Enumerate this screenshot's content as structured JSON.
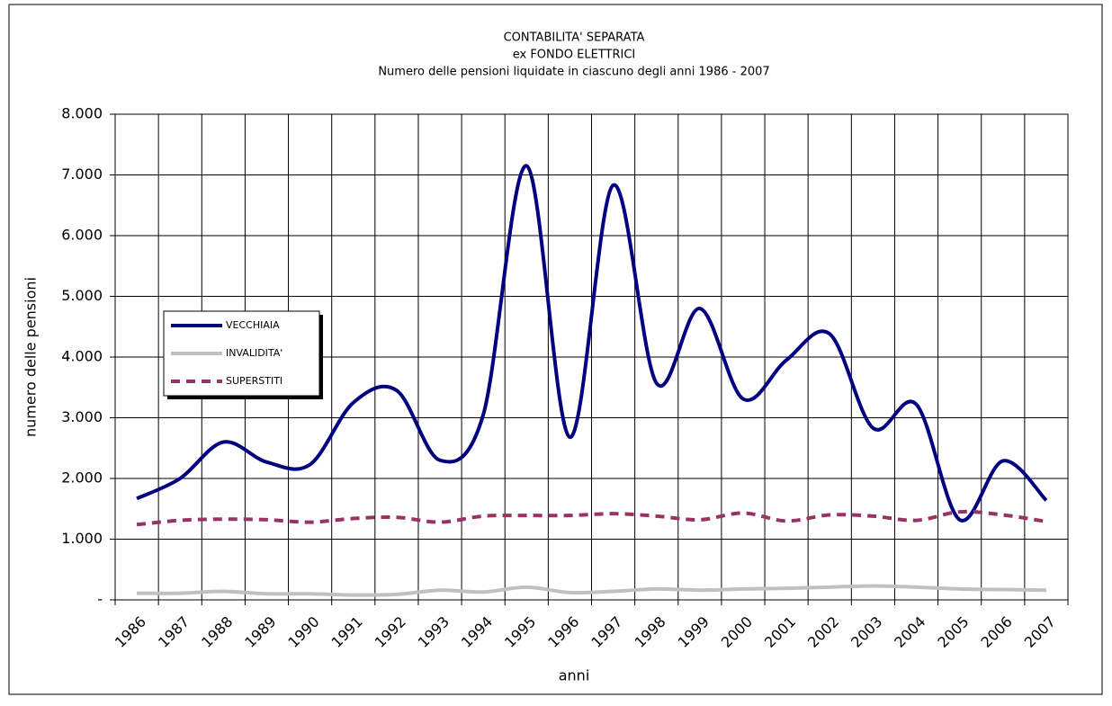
{
  "chart_data": {
    "type": "line",
    "title": [
      "CONTABILITA' SEPARATA",
      "ex FONDO ELETTRICI",
      "Numero delle pensioni liquidate in ciascuno degli anni 1986 - 2007"
    ],
    "x_label": "anni",
    "y_label": "numero delle pensioni",
    "categories": [
      "1986",
      "1987",
      "1988",
      "1989",
      "1990",
      "1991",
      "1992",
      "1993",
      "1994",
      "1995",
      "1996",
      "1997",
      "1998",
      "1999",
      "2000",
      "2001",
      "2002",
      "2003",
      "2004",
      "2005",
      "2006",
      "2007"
    ],
    "series": [
      {
        "name": "VECCHIAIA",
        "color": "#000080",
        "dash": false,
        "values": [
          1670,
          2000,
          2600,
          2270,
          2230,
          3250,
          3450,
          2300,
          3050,
          7150,
          2680,
          6830,
          3570,
          4800,
          3310,
          3950,
          4380,
          2830,
          3220,
          1320,
          2290,
          1640
        ]
      },
      {
        "name": "INVALIDITA'",
        "color": "#c0c0c0",
        "dash": false,
        "values": [
          110,
          110,
          140,
          100,
          100,
          80,
          90,
          160,
          130,
          210,
          120,
          140,
          180,
          160,
          180,
          190,
          210,
          230,
          210,
          180,
          170,
          160
        ]
      },
      {
        "name": "SUPERSTITI",
        "color": "#993366",
        "dash": true,
        "values": [
          1240,
          1310,
          1330,
          1320,
          1280,
          1340,
          1360,
          1280,
          1380,
          1390,
          1390,
          1420,
          1380,
          1320,
          1430,
          1300,
          1400,
          1380,
          1310,
          1450,
          1400,
          1290
        ]
      }
    ],
    "ylim": [
      0,
      8000
    ],
    "yticks": [
      {
        "value": 0,
        "label": "-"
      },
      {
        "value": 1000,
        "label": "1.000"
      },
      {
        "value": 2000,
        "label": "2.000"
      },
      {
        "value": 3000,
        "label": "3.000"
      },
      {
        "value": 4000,
        "label": "4.000"
      },
      {
        "value": 5000,
        "label": "5.000"
      },
      {
        "value": 6000,
        "label": "6.000"
      },
      {
        "value": 7000,
        "label": "7.000"
      },
      {
        "value": 8000,
        "label": "8.000"
      }
    ],
    "grid": true
  }
}
